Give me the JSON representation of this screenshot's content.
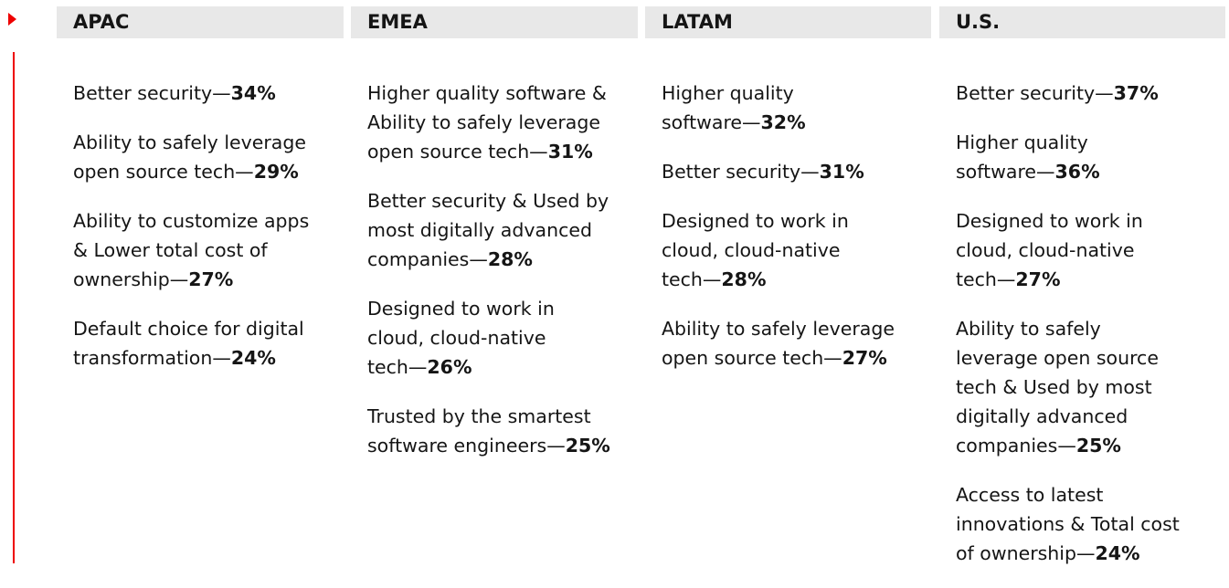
{
  "columns": [
    {
      "header": "APAC",
      "items": [
        {
          "lines": [
            "Better security—"
          ],
          "pct": "34%"
        },
        {
          "lines": [
            "Ability to safely leverage",
            "open source tech—"
          ],
          "pct": "29%"
        },
        {
          "lines": [
            "Ability to customize apps",
            "& Lower total cost of",
            "ownership—"
          ],
          "pct": "27%"
        },
        {
          "lines": [
            "Default choice for digital",
            "transformation—"
          ],
          "pct": "24%"
        }
      ]
    },
    {
      "header": "EMEA",
      "items": [
        {
          "lines": [
            "Higher quality software &",
            "Ability to safely leverage",
            "open source tech—"
          ],
          "pct": "31%"
        },
        {
          "lines": [
            "Better security & Used by",
            "most digitally advanced",
            "companies—"
          ],
          "pct": "28%"
        },
        {
          "lines": [
            "Designed to work in",
            "cloud, cloud-native",
            "tech—"
          ],
          "pct": "26%"
        },
        {
          "lines": [
            "Trusted by the smartest",
            "software engineers—"
          ],
          "pct": "25%"
        }
      ]
    },
    {
      "header": "LATAM",
      "items": [
        {
          "lines": [
            "Higher quality",
            "software—"
          ],
          "pct": "32%"
        },
        {
          "lines": [
            "Better security—"
          ],
          "pct": "31%"
        },
        {
          "lines": [
            "Designed to work in",
            "cloud, cloud-native",
            "tech—"
          ],
          "pct": "28%"
        },
        {
          "lines": [
            "Ability to safely leverage",
            "open source tech—"
          ],
          "pct": "27%"
        }
      ]
    },
    {
      "header": "U.S.",
      "items": [
        {
          "lines": [
            "Better security—"
          ],
          "pct": "37%"
        },
        {
          "lines": [
            "Higher quality",
            "software—"
          ],
          "pct": "36%"
        },
        {
          "lines": [
            "Designed to work in",
            "cloud, cloud-native",
            "tech—"
          ],
          "pct": "27%"
        },
        {
          "lines": [
            "Ability to safely",
            "leverage open source",
            "tech & Used by most",
            "digitally advanced",
            "companies—"
          ],
          "pct": "25%"
        },
        {
          "lines": [
            "Access to latest",
            "innovations & Total cost",
            "of ownership—"
          ],
          "pct": "24%"
        }
      ]
    }
  ],
  "colors": {
    "accent": "#ee0000",
    "header_bg": "#e8e8e8",
    "text": "#151515"
  }
}
